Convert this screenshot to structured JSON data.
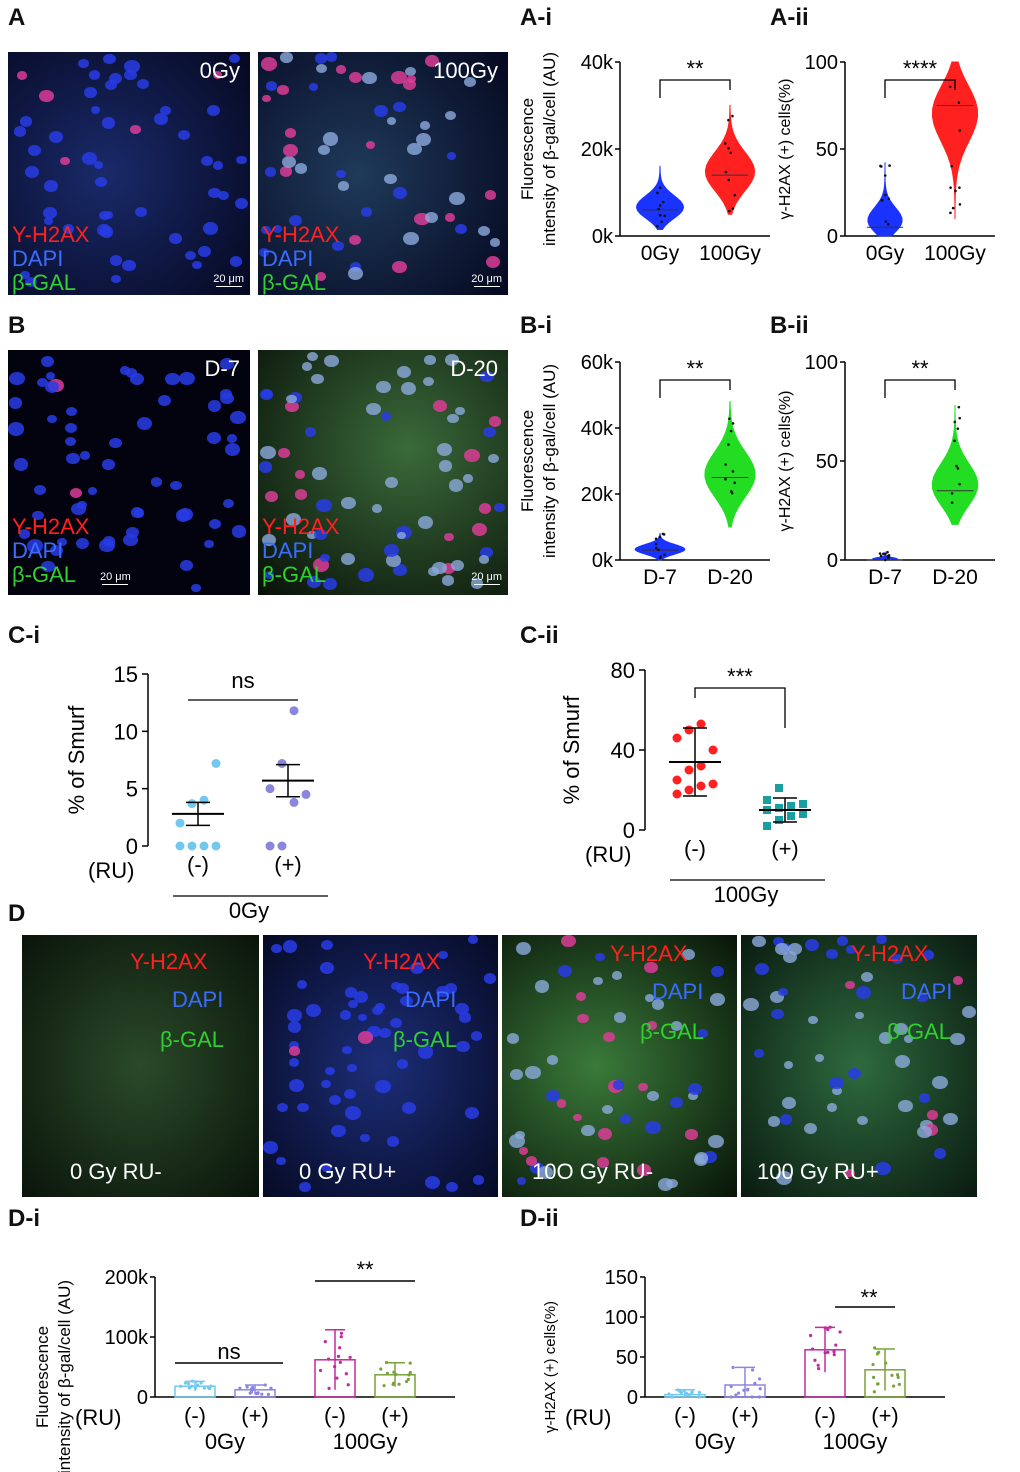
{
  "panels": {
    "A": {
      "letter": "A",
      "img1_label": "0Gy",
      "img2_label": "100Gy"
    },
    "Ai": {
      "letter": "A-i",
      "ylabel": "Fluorescence intensity of β-gal/cell (AU)",
      "yticks": [
        "0k",
        "20k",
        "40k"
      ],
      "groups": [
        "0Gy",
        "100Gy"
      ],
      "sig": "**"
    },
    "Aii": {
      "letter": "A-ii",
      "ylabel": "γ-H2AX (+) cells(%)",
      "yticks": [
        "0",
        "50",
        "100"
      ],
      "groups": [
        "0Gy",
        "100Gy"
      ],
      "sig": "****"
    },
    "B": {
      "letter": "B",
      "img1_label": "D-7",
      "img2_label": "D-20"
    },
    "Bi": {
      "letter": "B-i",
      "ylabel": "Fluorescence intensity of β-gal/cell (AU)",
      "yticks": [
        "0k",
        "20k",
        "40k",
        "60k"
      ],
      "groups": [
        "D-7",
        "D-20"
      ],
      "sig": "**"
    },
    "Bii": {
      "letter": "B-ii",
      "ylabel": "γ-H2AX (+) cells(%)",
      "yticks": [
        "0",
        "50",
        "100"
      ],
      "groups": [
        "D-7",
        "D-20"
      ],
      "sig": "**"
    },
    "Ci": {
      "letter": "C-i",
      "ylabel": "% of Smurf",
      "yticks": [
        "0",
        "5",
        "10",
        "15"
      ],
      "groups": [
        "(-)",
        "(+)"
      ],
      "ru": "(RU)",
      "group_label": "0Gy",
      "sig": "ns"
    },
    "Cii": {
      "letter": "C-ii",
      "ylabel": "% of Smurf",
      "yticks": [
        "0",
        "40",
        "80"
      ],
      "groups": [
        "(-)",
        "(+)"
      ],
      "ru": "(RU)",
      "group_label": "100Gy",
      "sig": "***"
    },
    "D": {
      "letter": "D",
      "labels": [
        "0 Gy RU-",
        "0 Gy RU+",
        "10O Gy RU-",
        "100 Gy RU+"
      ]
    },
    "Di": {
      "letter": "D-i",
      "ylabel": "Fluorescence intensity of β-gal/cell (AU)",
      "yticks": [
        "0",
        "100k",
        "200k"
      ],
      "groups": [
        "(-)",
        "(+)",
        "(-)",
        "(+)"
      ],
      "ru": "(RU)",
      "group_labels": [
        "0Gy",
        "100Gy"
      ],
      "sig1": "ns",
      "sig2": "**"
    },
    "Dii": {
      "letter": "D-ii",
      "ylabel": "γ-H2AX (+) cells(%)",
      "yticks": [
        "0",
        "50",
        "100",
        "150"
      ],
      "groups": [
        "(-)",
        "(+)",
        "(-)",
        "(+)"
      ],
      "ru": "(RU)",
      "group_labels": [
        "0Gy",
        "100Gy"
      ],
      "sig": "**"
    }
  },
  "stain_labels": {
    "h2ax": "Y-H2AX",
    "dapi": "DAPI",
    "bgal": "β-GAL"
  },
  "scale_bar": "20 μm",
  "colors": {
    "red": "#ff2020",
    "blue": "#1a33ff",
    "green": "#22dd22",
    "magenta": "#c02aa0",
    "olive": "#7aa23a",
    "cyan": "#72c8ee",
    "lavender": "#8a86e0",
    "teal": "#18a0a0"
  },
  "chart_data": [
    {
      "type": "violin",
      "panel": "A-i",
      "categories": [
        "0Gy",
        "100Gy"
      ],
      "median": [
        6000,
        14000
      ],
      "range": [
        [
          1500,
          16000
        ],
        [
          5000,
          30000
        ]
      ],
      "ylim": [
        0,
        40000
      ]
    },
    {
      "type": "violin",
      "panel": "A-ii",
      "categories": [
        "0Gy",
        "100Gy"
      ],
      "median": [
        5,
        75
      ],
      "range": [
        [
          0,
          42
        ],
        [
          10,
          100
        ]
      ],
      "ylim": [
        0,
        100
      ]
    },
    {
      "type": "violin",
      "panel": "B-i",
      "categories": [
        "D-7",
        "D-20"
      ],
      "median": [
        3000,
        25000
      ],
      "range": [
        [
          0,
          8000
        ],
        [
          10000,
          48000
        ]
      ],
      "ylim": [
        0,
        60000
      ]
    },
    {
      "type": "violin",
      "panel": "B-ii",
      "categories": [
        "D-7",
        "D-20"
      ],
      "median": [
        0,
        35
      ],
      "range": [
        [
          0,
          4
        ],
        [
          18,
          78
        ]
      ],
      "ylim": [
        0,
        100
      ]
    },
    {
      "type": "scatter",
      "panel": "C-i",
      "categories": [
        "(-)",
        "(+)"
      ],
      "mean": [
        2.8,
        5.7
      ],
      "sem": [
        1.0,
        1.4
      ],
      "points": [
        [
          0,
          0,
          0,
          0,
          2,
          3.7,
          4,
          7.2
        ],
        [
          0,
          0,
          3.8,
          4.5,
          5,
          7.2,
          11.8
        ]
      ],
      "ylim": [
        0,
        15
      ]
    },
    {
      "type": "scatter",
      "panel": "C-ii",
      "categories": [
        "(-)",
        "(+)"
      ],
      "mean": [
        34,
        10
      ],
      "sd": [
        17,
        6
      ],
      "points": [
        [
          18,
          20,
          22,
          23,
          25,
          30,
          32,
          40,
          46,
          50,
          53
        ],
        [
          2,
          5,
          7,
          8,
          10,
          11,
          12,
          13,
          15,
          21
        ]
      ],
      "ylim": [
        0,
        80
      ]
    },
    {
      "type": "bar",
      "panel": "D-i",
      "categories": [
        "0Gy (-)",
        "0Gy (+)",
        "100Gy (-)",
        "100Gy (+)"
      ],
      "values": [
        18000,
        12000,
        62000,
        37000
      ],
      "sd": [
        8000,
        8000,
        50000,
        20000
      ],
      "ylim": [
        0,
        200000
      ]
    },
    {
      "type": "bar",
      "panel": "D-ii",
      "categories": [
        "0Gy (-)",
        "0Gy (+)",
        "100Gy (-)",
        "100Gy (+)"
      ],
      "values": [
        3,
        15,
        59,
        34
      ],
      "sd": [
        6,
        22,
        28,
        26
      ],
      "ylim": [
        0,
        150
      ]
    }
  ]
}
